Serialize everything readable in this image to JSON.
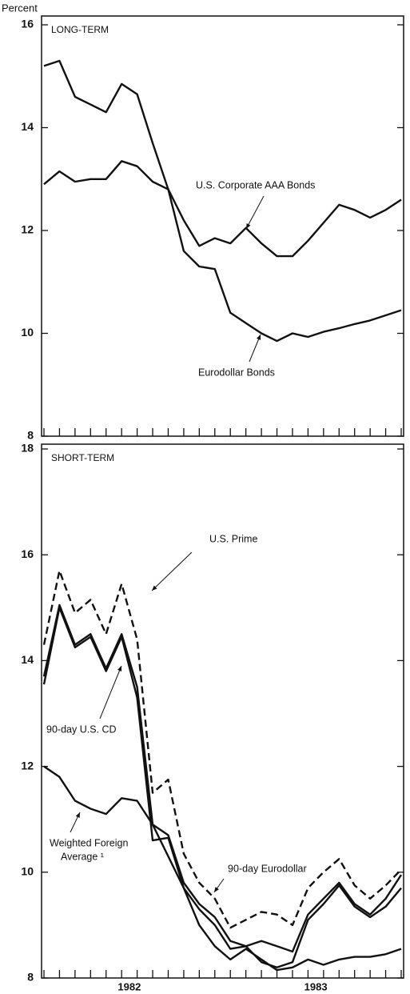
{
  "chart_data": [
    {
      "type": "line",
      "y_label": "Percent",
      "panel_label": "LONG-TERM",
      "categories": [
        null,
        null,
        null,
        null,
        null,
        null,
        null,
        null,
        null,
        null,
        null,
        null,
        null,
        null,
        null,
        null,
        null,
        null,
        null,
        null,
        null,
        null,
        null,
        null
      ],
      "ylim": [
        8,
        16
      ],
      "yticks": [
        8,
        10,
        12,
        14,
        16
      ],
      "series": [
        {
          "name": "Eurodollar Bonds",
          "color": "#111111",
          "style": "solid",
          "values": [
            15.2,
            15.3,
            14.6,
            14.45,
            14.3,
            14.85,
            14.65,
            13.7,
            12.8,
            11.6,
            11.3,
            11.25,
            10.4,
            10.2,
            10.0,
            9.85,
            10.0,
            9.93,
            10.03,
            10.1,
            10.18,
            10.25,
            10.35,
            10.45
          ]
        },
        {
          "name": "U.S. Corporate AAA Bonds",
          "color": "#111111",
          "style": "solid",
          "values": [
            12.9,
            13.15,
            12.95,
            13.0,
            13.0,
            13.35,
            13.25,
            12.95,
            12.8,
            12.2,
            11.7,
            11.85,
            11.75,
            12.05,
            11.75,
            11.5,
            11.5,
            11.8,
            12.15,
            12.5,
            12.4,
            12.25,
            12.4,
            12.6
          ]
        }
      ],
      "annotations": [
        "U.S. Corporate AAA Bonds",
        "Eurodollar Bonds"
      ]
    },
    {
      "type": "line",
      "panel_label": "SHORT-TERM",
      "categories": [
        null,
        null,
        null,
        null,
        null,
        "1982",
        null,
        null,
        null,
        null,
        null,
        null,
        null,
        null,
        null,
        null,
        null,
        "1983",
        null,
        null,
        null,
        null,
        null,
        null
      ],
      "ylim": [
        8,
        18
      ],
      "yticks": [
        8,
        10,
        12,
        14,
        16,
        18
      ],
      "series": [
        {
          "name": "U.S. Prime",
          "color": "#111111",
          "style": "dashed",
          "values": [
            14.3,
            15.7,
            14.9,
            15.15,
            14.5,
            15.45,
            14.4,
            11.5,
            11.75,
            10.35,
            9.8,
            9.5,
            8.95,
            9.1,
            9.25,
            9.2,
            9.0,
            9.7,
            10.0,
            10.25,
            9.75,
            9.5,
            9.75,
            10.05
          ]
        },
        {
          "name": "90-day U.S. CD",
          "color": "#111111",
          "style": "solid",
          "values": [
            13.55,
            15.0,
            14.25,
            14.45,
            13.8,
            14.45,
            13.3,
            10.6,
            10.65,
            9.7,
            9.3,
            9.0,
            8.55,
            8.6,
            8.3,
            8.2,
            8.3,
            9.1,
            9.4,
            9.75,
            9.35,
            9.15,
            9.35,
            9.7
          ]
        },
        {
          "name": "90-day Eurodollar",
          "color": "#111111",
          "style": "solid",
          "values": [
            13.7,
            15.05,
            14.3,
            14.5,
            13.85,
            14.5,
            13.5,
            10.9,
            10.7,
            9.8,
            9.4,
            9.15,
            8.7,
            8.6,
            8.7,
            8.6,
            8.5,
            9.2,
            9.5,
            9.8,
            9.4,
            9.2,
            9.5,
            9.95
          ]
        },
        {
          "name": "Weighted Foreign Average ¹",
          "color": "#111111",
          "style": "solid",
          "values": [
            12.0,
            11.8,
            11.35,
            11.2,
            11.1,
            11.4,
            11.35,
            10.9,
            10.3,
            9.7,
            9.0,
            8.6,
            8.35,
            8.55,
            8.35,
            8.15,
            8.2,
            8.35,
            8.25,
            8.35,
            8.4,
            8.4,
            8.45,
            8.55
          ]
        }
      ],
      "annotations": [
        "U.S. Prime",
        "90-day U.S. CD",
        [
          "Weighted Foreign",
          "Average ¹"
        ],
        "90-day Eurodollar"
      ]
    }
  ]
}
